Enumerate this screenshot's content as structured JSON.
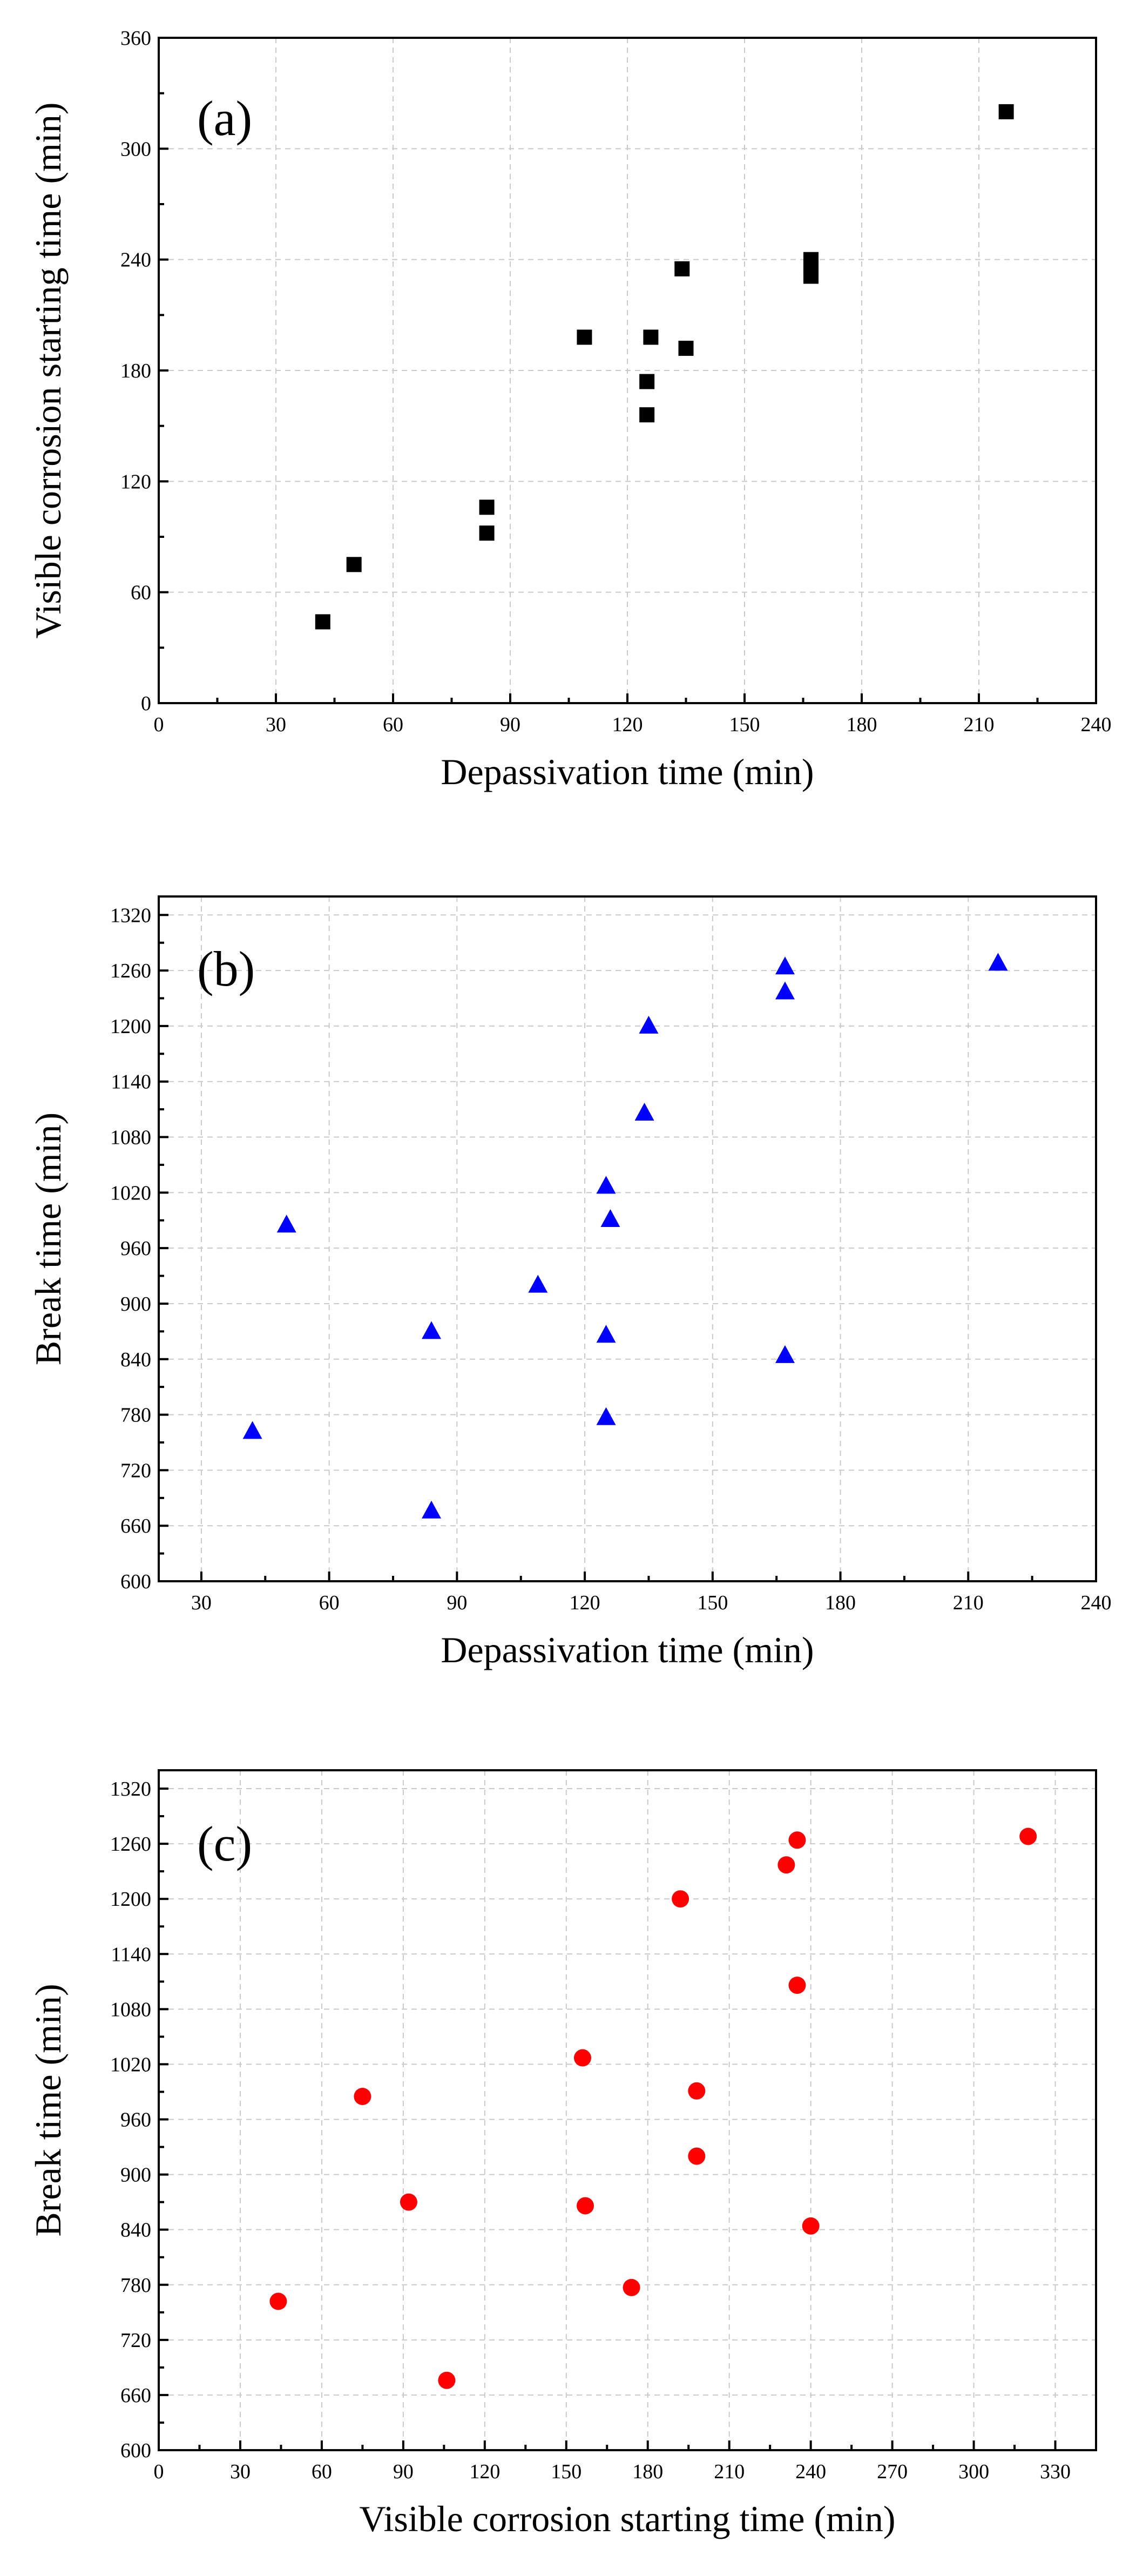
{
  "chart_data": [
    {
      "type": "scatter",
      "panel_label": "(a)",
      "xlabel": "Depassivation time (min)",
      "ylabel": "Visible corrosion starting time (min)",
      "xlim": [
        0,
        240
      ],
      "ylim": [
        0,
        360
      ],
      "xticks": [
        0,
        30,
        60,
        90,
        120,
        150,
        180,
        210,
        240
      ],
      "yticks": [
        0,
        60,
        120,
        180,
        240,
        300,
        360
      ],
      "grid": true,
      "marker": "square",
      "color": "#000000",
      "points": [
        {
          "x": 42,
          "y": 44
        },
        {
          "x": 50,
          "y": 75
        },
        {
          "x": 84,
          "y": 92
        },
        {
          "x": 84,
          "y": 106
        },
        {
          "x": 109,
          "y": 198
        },
        {
          "x": 125,
          "y": 156
        },
        {
          "x": 125,
          "y": 174
        },
        {
          "x": 126,
          "y": 198
        },
        {
          "x": 134,
          "y": 235
        },
        {
          "x": 135,
          "y": 192
        },
        {
          "x": 167,
          "y": 231
        },
        {
          "x": 167,
          "y": 236
        },
        {
          "x": 167,
          "y": 240
        },
        {
          "x": 217,
          "y": 320
        }
      ]
    },
    {
      "type": "scatter",
      "panel_label": "(b)",
      "xlabel": "Depassivation time (min)",
      "ylabel": "Break time (min)",
      "xlim": [
        20,
        240
      ],
      "ylim": [
        600,
        1340
      ],
      "xticks": [
        30,
        60,
        90,
        120,
        150,
        180,
        210,
        240
      ],
      "yticks": [
        600,
        660,
        720,
        780,
        840,
        900,
        960,
        1020,
        1080,
        1140,
        1200,
        1260,
        1320
      ],
      "grid": true,
      "marker": "triangle",
      "color": "#0000ff",
      "points": [
        {
          "x": 42,
          "y": 762
        },
        {
          "x": 50,
          "y": 985
        },
        {
          "x": 84,
          "y": 870
        },
        {
          "x": 84,
          "y": 676
        },
        {
          "x": 109,
          "y": 920
        },
        {
          "x": 125,
          "y": 1027
        },
        {
          "x": 125,
          "y": 866
        },
        {
          "x": 125,
          "y": 777
        },
        {
          "x": 126,
          "y": 991
        },
        {
          "x": 134,
          "y": 1106
        },
        {
          "x": 135,
          "y": 1200
        },
        {
          "x": 167,
          "y": 1264
        },
        {
          "x": 167,
          "y": 1237
        },
        {
          "x": 167,
          "y": 844
        },
        {
          "x": 217,
          "y": 1268
        }
      ]
    },
    {
      "type": "scatter",
      "panel_label": "(c)",
      "xlabel": "Visible corrosion starting time (min)",
      "ylabel": "Break time (min)",
      "xlim": [
        0,
        345
      ],
      "ylim": [
        600,
        1340
      ],
      "xticks": [
        0,
        30,
        60,
        90,
        120,
        150,
        180,
        210,
        240,
        270,
        300,
        330
      ],
      "yticks": [
        600,
        660,
        720,
        780,
        840,
        900,
        960,
        1020,
        1080,
        1140,
        1200,
        1260,
        1320
      ],
      "grid": true,
      "marker": "circle",
      "color": "#ff0000",
      "points": [
        {
          "x": 44,
          "y": 762
        },
        {
          "x": 75,
          "y": 985
        },
        {
          "x": 92,
          "y": 870
        },
        {
          "x": 106,
          "y": 676
        },
        {
          "x": 156,
          "y": 1027
        },
        {
          "x": 157,
          "y": 866
        },
        {
          "x": 174,
          "y": 777
        },
        {
          "x": 192,
          "y": 1200
        },
        {
          "x": 198,
          "y": 991
        },
        {
          "x": 198,
          "y": 920
        },
        {
          "x": 231,
          "y": 1237
        },
        {
          "x": 235,
          "y": 1264
        },
        {
          "x": 235,
          "y": 1106
        },
        {
          "x": 240,
          "y": 844
        },
        {
          "x": 320,
          "y": 1268
        }
      ]
    }
  ]
}
